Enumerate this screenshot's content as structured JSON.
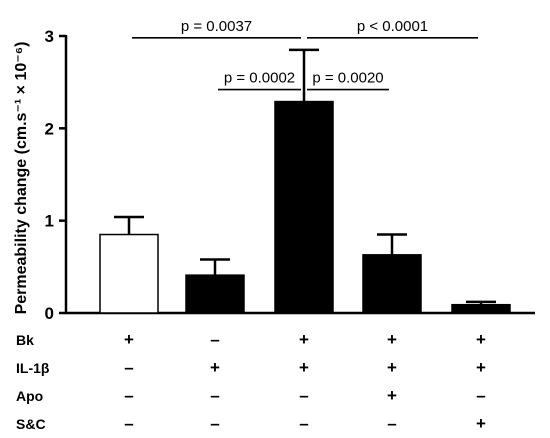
{
  "chart_data": {
    "type": "bar",
    "ylabel": "Permeability change (cm.s⁻¹ × 10⁻⁶)",
    "ylim": [
      0,
      3
    ],
    "yticks": [
      0,
      1,
      2,
      3
    ],
    "grid": false,
    "values": [
      0.85,
      0.41,
      2.29,
      0.63,
      0.09
    ],
    "errors": [
      0.19,
      0.17,
      0.56,
      0.22,
      0.03
    ],
    "bar_fills": [
      "#ffffff",
      "#000000",
      "#000000",
      "#000000",
      "#000000"
    ],
    "comparisons": [
      {
        "from": 0,
        "to": 2,
        "label": "p = 0.0037",
        "y": 2.98
      },
      {
        "from": 2,
        "to": 4,
        "label": "p < 0.0001",
        "y": 2.98
      },
      {
        "from": 1,
        "to": 2,
        "label": "p = 0.0002",
        "y": 2.42
      },
      {
        "from": 2,
        "to": 3,
        "label": "p = 0.0020",
        "y": 2.42
      }
    ],
    "treatments": [
      {
        "label": "Bk",
        "signs": [
          "+",
          "–",
          "+",
          "+",
          "+"
        ]
      },
      {
        "label": "IL-1β",
        "signs": [
          "–",
          "+",
          "+",
          "+",
          "+"
        ]
      },
      {
        "label": "Apo",
        "signs": [
          "–",
          "–",
          "–",
          "+",
          "–"
        ]
      },
      {
        "label": "S&C",
        "signs": [
          "–",
          "–",
          "–",
          "–",
          "+"
        ]
      }
    ]
  }
}
